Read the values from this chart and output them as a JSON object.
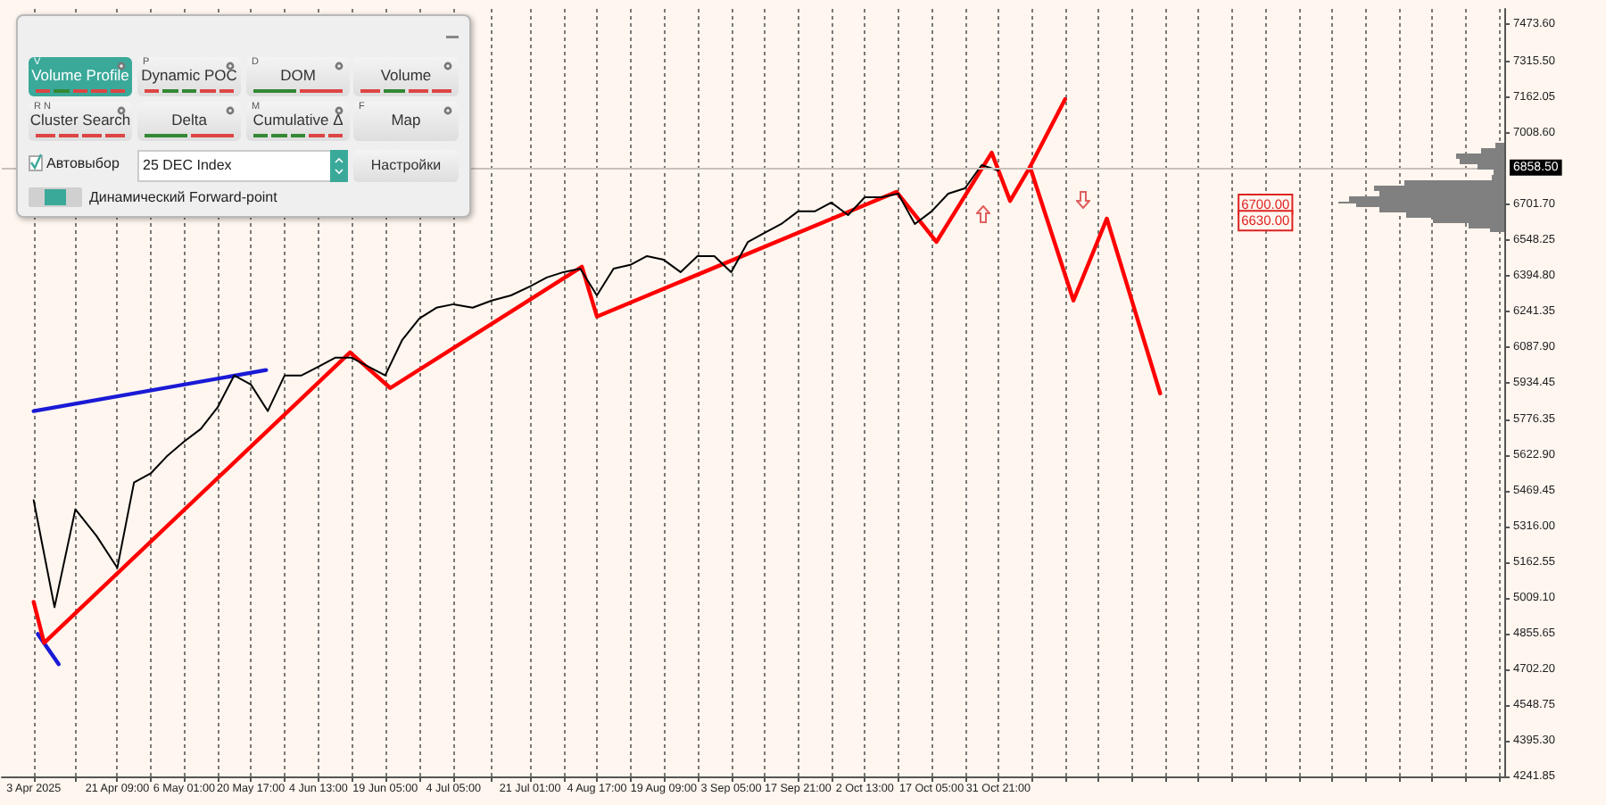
{
  "chart_data": [
    {
      "type": "line",
      "marker": "none",
      "line_style": "solid",
      "grid": "x",
      "xlim": [
        "2025-03-27T00:00",
        "2026-02-20T00:00"
      ],
      "xticks": [
        {
          "value": "2025-04-03T00:00",
          "label": "3 Apr 2025"
        },
        {
          "value": "2025-04-12T04:00",
          "label": null
        },
        {
          "value": "2025-04-21T09:00",
          "label": "21 Apr 09:00"
        },
        {
          "value": "2025-04-28T17:00",
          "label": null
        },
        {
          "value": "2025-05-06T01:00",
          "label": "6 May 01:00"
        },
        {
          "value": "2025-05-13T09:00",
          "label": null
        },
        {
          "value": "2025-05-20T17:00",
          "label": "20 May 17:00"
        },
        {
          "value": "2025-05-28T03:00",
          "label": null
        },
        {
          "value": "2025-06-04T13:00",
          "label": "4 Jun 13:00"
        },
        {
          "value": "2025-06-11T21:00",
          "label": null
        },
        {
          "value": "2025-06-19T05:00",
          "label": "19 Jun 05:00"
        },
        {
          "value": "2025-06-26T17:00",
          "label": null
        },
        {
          "value": "2025-07-04T05:00",
          "label": "4 Jul 05:00"
        },
        {
          "value": "2025-07-12T15:00",
          "label": null
        },
        {
          "value": "2025-07-21T01:00",
          "label": "21 Jul 01:00"
        },
        {
          "value": "2025-07-28T09:00",
          "label": null
        },
        {
          "value": "2025-08-04T17:00",
          "label": "4 Aug 17:00"
        },
        {
          "value": "2025-08-12T01:00",
          "label": null
        },
        {
          "value": "2025-08-19T09:00",
          "label": "19 Aug 09:00"
        },
        {
          "value": "2025-08-26T19:00",
          "label": null
        },
        {
          "value": "2025-09-03T05:00",
          "label": "3 Sep 05:00"
        },
        {
          "value": "2025-09-10T13:00",
          "label": null
        },
        {
          "value": "2025-09-17T21:00",
          "label": "17 Sep 21:00"
        },
        {
          "value": "2025-09-25T05:00",
          "label": null
        },
        {
          "value": "2025-10-02T13:00",
          "label": "2 Oct 13:00"
        },
        {
          "value": "2025-10-09T21:00",
          "label": null
        },
        {
          "value": "2025-10-17T05:00",
          "label": "17 Oct 05:00"
        },
        {
          "value": "2025-10-24T13:00",
          "label": null
        },
        {
          "value": "2025-10-31T21:00",
          "label": "31 Oct 21:00"
        },
        {
          "value": "2025-11-08T05:00",
          "label": null
        },
        {
          "value": "2025-11-15T13:00",
          "label": null
        },
        {
          "value": "2025-11-22T21:00",
          "label": null
        },
        {
          "value": "2025-11-30T05:00",
          "label": null
        },
        {
          "value": "2025-12-07T13:00",
          "label": null
        },
        {
          "value": "2025-12-14T21:00",
          "label": null
        },
        {
          "value": "2025-12-22T05:00",
          "label": null
        },
        {
          "value": "2025-12-29T13:00",
          "label": null
        },
        {
          "value": "2026-01-05T21:00",
          "label": null
        },
        {
          "value": "2026-01-13T05:00",
          "label": null
        },
        {
          "value": "2026-01-20T13:00",
          "label": null
        },
        {
          "value": "2026-01-27T21:00",
          "label": null
        },
        {
          "value": "2026-02-04T05:00",
          "label": null
        },
        {
          "value": "2026-02-11T13:00",
          "label": null
        },
        {
          "value": "2026-02-18T21:00",
          "label": null
        }
      ],
      "ylim": [
        4241.85,
        7540
      ],
      "yticks": [
        {
          "value": 4241.85,
          "label": "4241.85"
        },
        {
          "value": 4395.3,
          "label": "4395.30"
        },
        {
          "value": 4548.75,
          "label": "4548.75"
        },
        {
          "value": 4702.2,
          "label": "4702.20"
        },
        {
          "value": 4855.65,
          "label": "4855.65"
        },
        {
          "value": 5009.1,
          "label": "5009.10"
        },
        {
          "value": 5162.55,
          "label": "5162.55"
        },
        {
          "value": 5316,
          "label": "5316.00"
        },
        {
          "value": 5469.45,
          "label": "5469.45"
        },
        {
          "value": 5622.9,
          "label": "5622.90"
        },
        {
          "value": 5776.35,
          "label": "5776.35"
        },
        {
          "value": 5934.45,
          "label": "5934.45"
        },
        {
          "value": 6087.9,
          "label": "6087.90"
        },
        {
          "value": 6241.35,
          "label": "6241.35"
        },
        {
          "value": 6394.8,
          "label": "6394.80"
        },
        {
          "value": 6548.25,
          "label": "6548.25"
        },
        {
          "value": 6701.7,
          "label": "6701.70"
        },
        {
          "value": 7008.6,
          "label": "7008.60"
        },
        {
          "value": 7162.05,
          "label": "7162.05"
        },
        {
          "value": 7315.5,
          "label": "7315.50"
        },
        {
          "value": 7473.6,
          "label": "7473.60"
        }
      ],
      "series": [
        {
          "color": "#000000",
          "x": [
            "2025-04-03T00:00",
            "2025-04-07T14:00",
            "2025-04-12T04:00",
            "2025-04-16T19:00",
            "2025-04-21T09:00",
            "2025-04-25T01:00",
            "2025-04-28T17:00",
            "2025-05-02T09:00",
            "2025-05-06T01:00",
            "2025-05-09T17:00",
            "2025-05-13T09:00",
            "2025-05-17T01:00",
            "2025-05-20T17:00",
            "2025-05-24T10:00",
            "2025-05-28T03:00",
            "2025-05-31T20:00",
            "2025-06-04T13:00",
            "2025-06-08T05:00",
            "2025-06-11T21:00",
            "2025-06-15T13:00",
            "2025-06-19T05:00",
            "2025-06-22T23:00",
            "2025-06-26T17:00",
            "2025-06-30T11:00",
            "2025-07-04T05:00",
            "2025-07-08T10:00",
            "2025-07-12T15:00",
            "2025-07-16T20:00",
            "2025-07-21T01:00",
            "2025-07-24T17:00",
            "2025-07-28T09:00",
            "2025-08-01T01:00",
            "2025-08-04T17:00",
            "2025-08-08T09:00",
            "2025-08-12T01:00",
            "2025-08-15T17:00",
            "2025-08-19T09:00",
            "2025-08-23T02:00",
            "2025-08-26T19:00",
            "2025-08-30T12:00",
            "2025-09-03T05:00",
            "2025-09-06T21:00",
            "2025-09-10T13:00",
            "2025-09-14T05:00",
            "2025-09-17T21:00",
            "2025-09-21T13:00",
            "2025-09-25T05:00",
            "2025-09-28T21:00",
            "2025-10-02T13:00",
            "2025-10-06T05:00",
            "2025-10-09T21:00",
            "2025-10-13T13:00",
            "2025-10-17T05:00",
            "2025-10-20T21:00",
            "2025-10-24T13:00",
            "2025-10-28T05:00",
            "2025-10-31T21:00"
          ],
          "values": [
            5429,
            4969,
            5390,
            5276,
            5138,
            5505,
            5544,
            5620,
            5681,
            5735,
            5827,
            5965,
            5926,
            5812,
            5965,
            5965,
            6003,
            6041,
            6041,
            6003,
            5965,
            6118,
            6210,
            6256,
            6271,
            6256,
            6287,
            6309,
            6348,
            6386,
            6409,
            6424,
            6309,
            6424,
            6440,
            6478,
            6462,
            6409,
            6478,
            6478,
            6409,
            6539,
            6578,
            6616,
            6670,
            6670,
            6708,
            6654,
            6731,
            6731,
            6746,
            6616,
            6670,
            6746,
            6769,
            6869,
            6846
          ]
        },
        {
          "color": "#1a1ad6",
          "x": [
            "2025-04-03T00:00",
            "2025-05-24T01:00"
          ],
          "values": [
            5812,
            5988
          ]
        },
        {
          "color": "#1a1ad6",
          "x": [
            "2025-04-03T22:00",
            "2025-04-08T12:00"
          ],
          "values": [
            4854,
            4724
          ]
        },
        {
          "color": "#ff0000",
          "x": [
            "2025-04-03T00:00",
            "2025-04-05T07:00",
            "2025-06-11T12:00",
            "2025-06-20T08:00",
            "2025-08-01T10:00",
            "2025-08-04T17:00",
            "2025-10-09T12:00",
            "2025-10-18T07:00",
            "2025-10-30T10:00",
            "2025-11-03T11:00",
            "2025-11-07T20:00",
            "2025-11-15T13:00"
          ],
          "values": [
            4992,
            4816,
            6064,
            5911,
            6432,
            6218,
            6754,
            6539,
            6922,
            6715,
            6861,
            7152
          ]
        },
        {
          "color": "#ff0000",
          "x": [
            "2025-11-07T20:00",
            "2025-11-17T09:00",
            "2025-11-24T17:00",
            "2025-12-06T10:00"
          ],
          "values": [
            6861,
            6287,
            6639,
            5888
          ]
        }
      ],
      "ref_lines": [
        {
          "axis": "y",
          "value": 6858.5,
          "label": "6858.50",
          "color": "#c8c0bc"
        }
      ],
      "annotations": [
        {
          "text": "6700.00",
          "x": "2025-12-29T13:00",
          "y": 6700
        },
        {
          "text": "6630.00",
          "x": "2025-12-29T13:00",
          "y": 6630
        }
      ]
    },
    {
      "type": "other",
      "annotations": [
        "V",
        "Volume Profile",
        "P",
        "Dynamic POC",
        "D",
        "DOM",
        "Volume",
        "R N",
        "Cluster Search",
        "Delta",
        "M",
        "Cumulative Δ",
        "F",
        "Map",
        "Автовыбор",
        "25 DEC Index",
        "Настройки",
        "Динамический Forward-point"
      ]
    }
  ]
}
